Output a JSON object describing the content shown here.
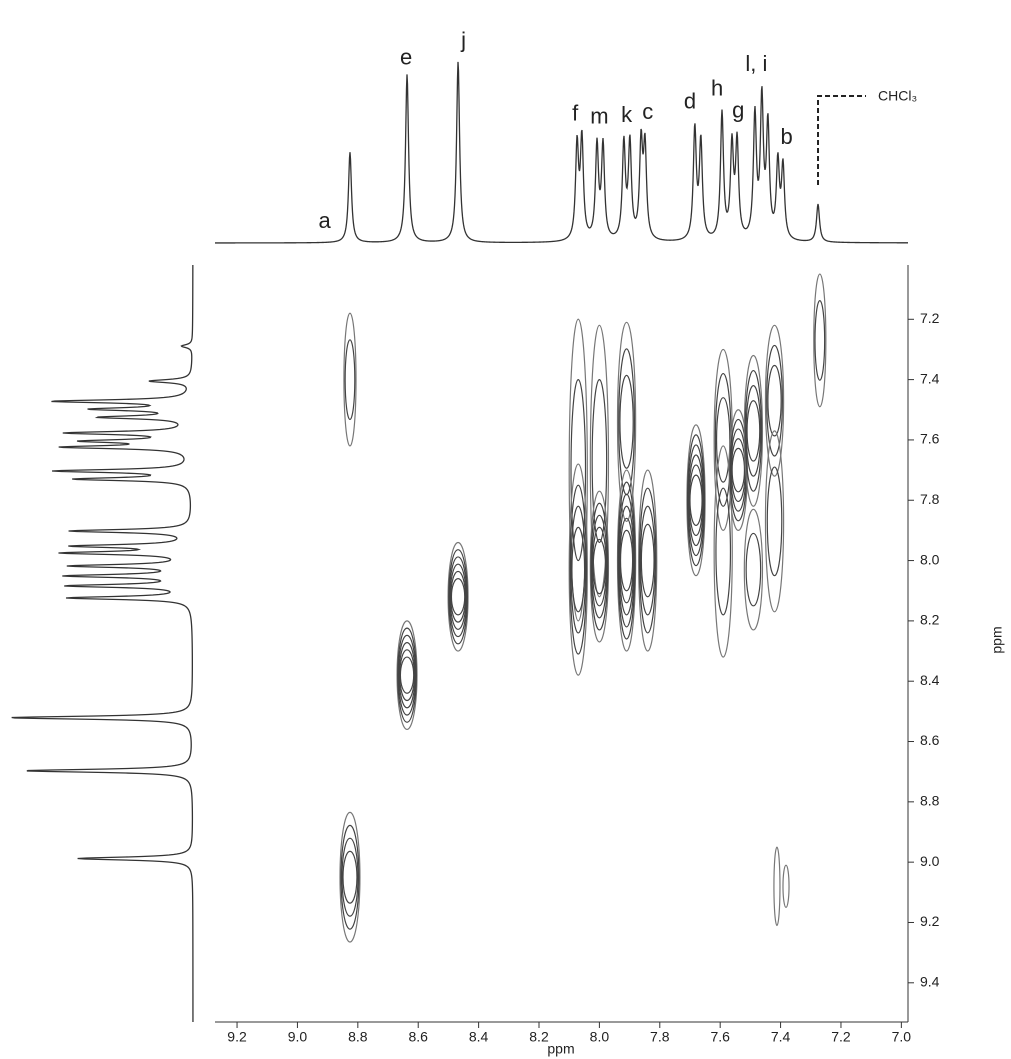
{
  "chart_data": {
    "type": "nmr2d",
    "x_label": "ppm",
    "y_label": "ppm",
    "xlim": [
      9.273,
      6.978
    ],
    "xticks": [
      9.2,
      {
        "value": 9.0,
        "label": "9.0"
      },
      8.8,
      8.6,
      8.4,
      8.2,
      {
        "value": 8.0,
        "label": "8.0"
      },
      7.8,
      7.6,
      7.4,
      7.2,
      {
        "value": 7.0,
        "label": "7.0"
      }
    ],
    "ylim": [
      7.02,
      9.53
    ],
    "yticks": [
      7.2,
      7.4,
      7.6,
      7.8,
      {
        "value": 8.0,
        "label": "8.0"
      },
      8.2,
      8.4,
      8.6,
      8.8,
      {
        "value": 9.0,
        "label": "9.0"
      },
      9.2,
      9.4
    ],
    "top_spectrum": {
      "peaks": [
        {
          "ppm": 8.826,
          "height": 0.5
        },
        {
          "ppm": 8.637,
          "height": 0.93
        },
        {
          "ppm": 8.468,
          "height": 1.0
        },
        {
          "ppm": 8.074,
          "height": 0.52
        },
        {
          "ppm": 8.058,
          "height": 0.55
        },
        {
          "ppm": 8.008,
          "height": 0.52
        },
        {
          "ppm": 7.988,
          "height": 0.52
        },
        {
          "ppm": 7.919,
          "height": 0.53
        },
        {
          "ppm": 7.899,
          "height": 0.53
        },
        {
          "ppm": 7.862,
          "height": 0.52
        },
        {
          "ppm": 7.849,
          "height": 0.5
        },
        {
          "ppm": 7.684,
          "height": 0.61
        },
        {
          "ppm": 7.664,
          "height": 0.54
        },
        {
          "ppm": 7.594,
          "height": 0.7
        },
        {
          "ppm": 7.561,
          "height": 0.51
        },
        {
          "ppm": 7.544,
          "height": 0.53
        },
        {
          "ppm": 7.485,
          "height": 0.68
        },
        {
          "ppm": 7.462,
          "height": 0.76
        },
        {
          "ppm": 7.442,
          "height": 0.62
        },
        {
          "ppm": 7.409,
          "height": 0.42
        },
        {
          "ppm": 7.392,
          "height": 0.4
        },
        {
          "ppm": 7.276,
          "height": 0.21
        }
      ]
    },
    "left_spectrum": {
      "peaks": [
        {
          "ppm": 7.289,
          "height": 0.06
        },
        {
          "ppm": 7.405,
          "height": 0.23
        },
        {
          "ppm": 7.472,
          "height": 0.74
        },
        {
          "ppm": 7.498,
          "height": 0.51
        },
        {
          "ppm": 7.525,
          "height": 0.48
        },
        {
          "ppm": 7.577,
          "height": 0.66
        },
        {
          "ppm": 7.604,
          "height": 0.54
        },
        {
          "ppm": 7.624,
          "height": 0.67
        },
        {
          "ppm": 7.703,
          "height": 0.73
        },
        {
          "ppm": 7.73,
          "height": 0.62
        },
        {
          "ppm": 7.902,
          "height": 0.66
        },
        {
          "ppm": 7.952,
          "height": 0.62
        },
        {
          "ppm": 7.975,
          "height": 0.67
        },
        {
          "ppm": 8.018,
          "height": 0.64
        },
        {
          "ppm": 8.051,
          "height": 0.66
        },
        {
          "ppm": 8.084,
          "height": 0.66
        },
        {
          "ppm": 8.124,
          "height": 0.67
        },
        {
          "ppm": 8.521,
          "height": 1.0
        },
        {
          "ppm": 8.697,
          "height": 0.92
        },
        {
          "ppm": 8.988,
          "height": 0.63
        }
      ]
    },
    "peak_labels": [
      {
        "text": "a",
        "ppm": 8.91
      },
      {
        "text": "e",
        "ppm": 8.64
      },
      {
        "text": "j",
        "ppm": 8.45
      },
      {
        "text": "f",
        "ppm": 8.08
      },
      {
        "text": "m",
        "ppm": 8.0
      },
      {
        "text": "k",
        "ppm": 7.91
      },
      {
        "text": "c",
        "ppm": 7.84
      },
      {
        "text": "d",
        "ppm": 7.7
      },
      {
        "text": "h",
        "ppm": 7.61
      },
      {
        "text": "g",
        "ppm": 7.54
      },
      {
        "text": "l, i",
        "ppm": 7.48
      },
      {
        "text": "b",
        "ppm": 7.38
      }
    ],
    "solvent_label": {
      "text": "CHCl₃",
      "ppm": 7.276
    },
    "cross_peaks": [
      {
        "x": 8.826,
        "y": 9.05,
        "rx": 0.033,
        "ry": 0.215,
        "levels": 4
      },
      {
        "x": 8.637,
        "y": 8.38,
        "rx": 0.033,
        "ry": 0.18,
        "levels": 6
      },
      {
        "x": 8.468,
        "y": 8.12,
        "rx": 0.033,
        "ry": 0.18,
        "levels": 6
      },
      {
        "x": 8.826,
        "y": 7.4,
        "rx": 0.02,
        "ry": 0.22,
        "levels": 2
      },
      {
        "x": 7.412,
        "y": 9.08,
        "rx": 0.01,
        "ry": 0.13,
        "levels": 1
      },
      {
        "x": 7.382,
        "y": 9.08,
        "rx": 0.01,
        "ry": 0.07,
        "levels": 1
      },
      {
        "x": 7.27,
        "y": 7.27,
        "rx": 0.02,
        "ry": 0.22,
        "levels": 2
      },
      {
        "x": 8.07,
        "y": 7.7,
        "rx": 0.03,
        "ry": 0.5,
        "levels": 2
      },
      {
        "x": 8.07,
        "y": 8.03,
        "rx": 0.03,
        "ry": 0.35,
        "levels": 4
      },
      {
        "x": 8.0,
        "y": 7.67,
        "rx": 0.03,
        "ry": 0.45,
        "levels": 2
      },
      {
        "x": 8.0,
        "y": 8.02,
        "rx": 0.03,
        "ry": 0.25,
        "levels": 5
      },
      {
        "x": 7.91,
        "y": 7.54,
        "rx": 0.03,
        "ry": 0.33,
        "levels": 3
      },
      {
        "x": 7.91,
        "y": 8.0,
        "rx": 0.03,
        "ry": 0.3,
        "levels": 6
      },
      {
        "x": 7.84,
        "y": 8.0,
        "rx": 0.03,
        "ry": 0.3,
        "levels": 4
      },
      {
        "x": 7.68,
        "y": 7.8,
        "rx": 0.03,
        "ry": 0.25,
        "levels": 6
      },
      {
        "x": 7.59,
        "y": 7.6,
        "rx": 0.03,
        "ry": 0.3,
        "levels": 3
      },
      {
        "x": 7.59,
        "y": 7.97,
        "rx": 0.03,
        "ry": 0.35,
        "levels": 2
      },
      {
        "x": 7.54,
        "y": 7.7,
        "rx": 0.03,
        "ry": 0.2,
        "levels": 5
      },
      {
        "x": 7.49,
        "y": 7.57,
        "rx": 0.03,
        "ry": 0.25,
        "levels": 4
      },
      {
        "x": 7.49,
        "y": 8.03,
        "rx": 0.03,
        "ry": 0.2,
        "levels": 2
      },
      {
        "x": 7.42,
        "y": 7.47,
        "rx": 0.03,
        "ry": 0.25,
        "levels": 3
      },
      {
        "x": 7.42,
        "y": 7.87,
        "rx": 0.03,
        "ry": 0.3,
        "levels": 2
      }
    ]
  }
}
